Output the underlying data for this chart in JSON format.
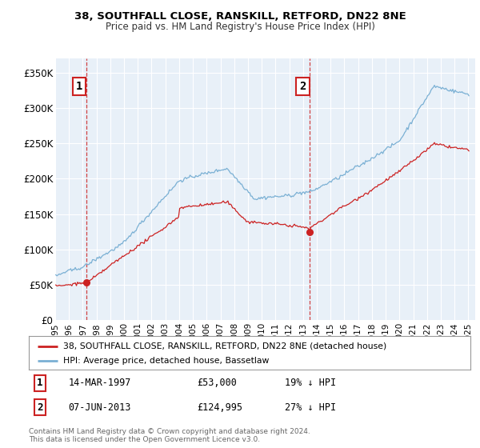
{
  "title1": "38, SOUTHFALL CLOSE, RANSKILL, RETFORD, DN22 8NE",
  "title2": "Price paid vs. HM Land Registry's House Price Index (HPI)",
  "ylim": [
    0,
    370000
  ],
  "yticks": [
    0,
    50000,
    100000,
    150000,
    200000,
    250000,
    300000,
    350000
  ],
  "ytick_labels": [
    "£0",
    "£50K",
    "£100K",
    "£150K",
    "£200K",
    "£250K",
    "£300K",
    "£350K"
  ],
  "plot_bg_color": "#e8f0f8",
  "hpi_color": "#7ab0d4",
  "price_color": "#cc2222",
  "sale1_price": 53000,
  "sale2_price": 124995,
  "legend_line1": "38, SOUTHFALL CLOSE, RANSKILL, RETFORD, DN22 8NE (detached house)",
  "legend_line2": "HPI: Average price, detached house, Bassetlaw",
  "footer": "Contains HM Land Registry data © Crown copyright and database right 2024.\nThis data is licensed under the Open Government Licence v3.0.",
  "xstart": 1995.0,
  "xend": 2025.5
}
